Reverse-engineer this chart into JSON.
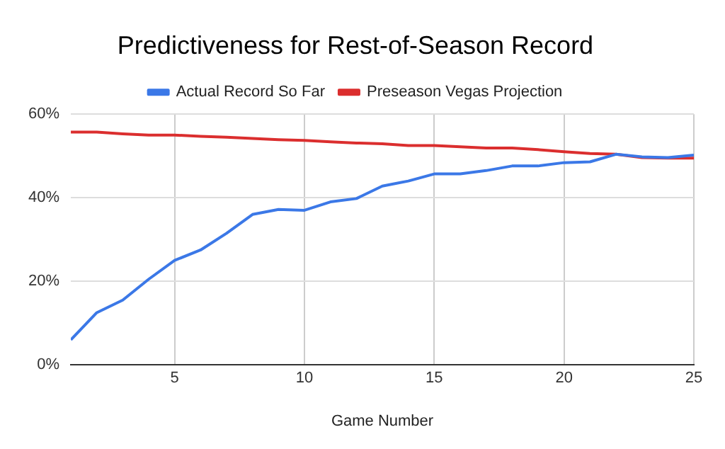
{
  "chart_data": {
    "type": "line",
    "title": "Predictiveness for Rest-of-Season Record",
    "xlabel": "Game Number",
    "x": [
      1,
      2,
      3,
      4,
      5,
      6,
      7,
      8,
      9,
      10,
      11,
      12,
      13,
      14,
      15,
      16,
      17,
      18,
      19,
      20,
      21,
      22,
      23,
      24,
      25
    ],
    "series": [
      {
        "name": "Actual Record So Far",
        "color": "#3b78e7",
        "values": [
          6,
          12.5,
          15.5,
          20.5,
          25,
          27.5,
          31.5,
          36,
          37.2,
          37,
          39,
          39.8,
          42.8,
          44,
          45.7,
          45.7,
          46.5,
          47.6,
          47.6,
          48.4,
          48.6,
          50.4,
          49.8,
          49.6,
          50.2
        ]
      },
      {
        "name": "Preseason Vegas Projection",
        "color": "#db2e2e",
        "values": [
          55.7,
          55.7,
          55.3,
          55,
          55,
          54.7,
          54.5,
          54.2,
          53.9,
          53.7,
          53.4,
          53.1,
          52.9,
          52.5,
          52.5,
          52.2,
          51.9,
          51.9,
          51.5,
          51,
          50.6,
          50.4,
          49.6,
          49.5,
          49.5
        ]
      }
    ],
    "xlim": [
      1,
      25
    ],
    "xticks": [
      5,
      10,
      15,
      20,
      25
    ],
    "ylim": [
      0,
      60
    ],
    "yticks": [
      {
        "value": 0,
        "label": "0%"
      },
      {
        "value": 20,
        "label": "20%"
      },
      {
        "value": 40,
        "label": "40%"
      },
      {
        "value": 60,
        "label": "60%"
      }
    ],
    "grid": true,
    "legend": "top",
    "marker": "none",
    "line_style": "solid"
  }
}
